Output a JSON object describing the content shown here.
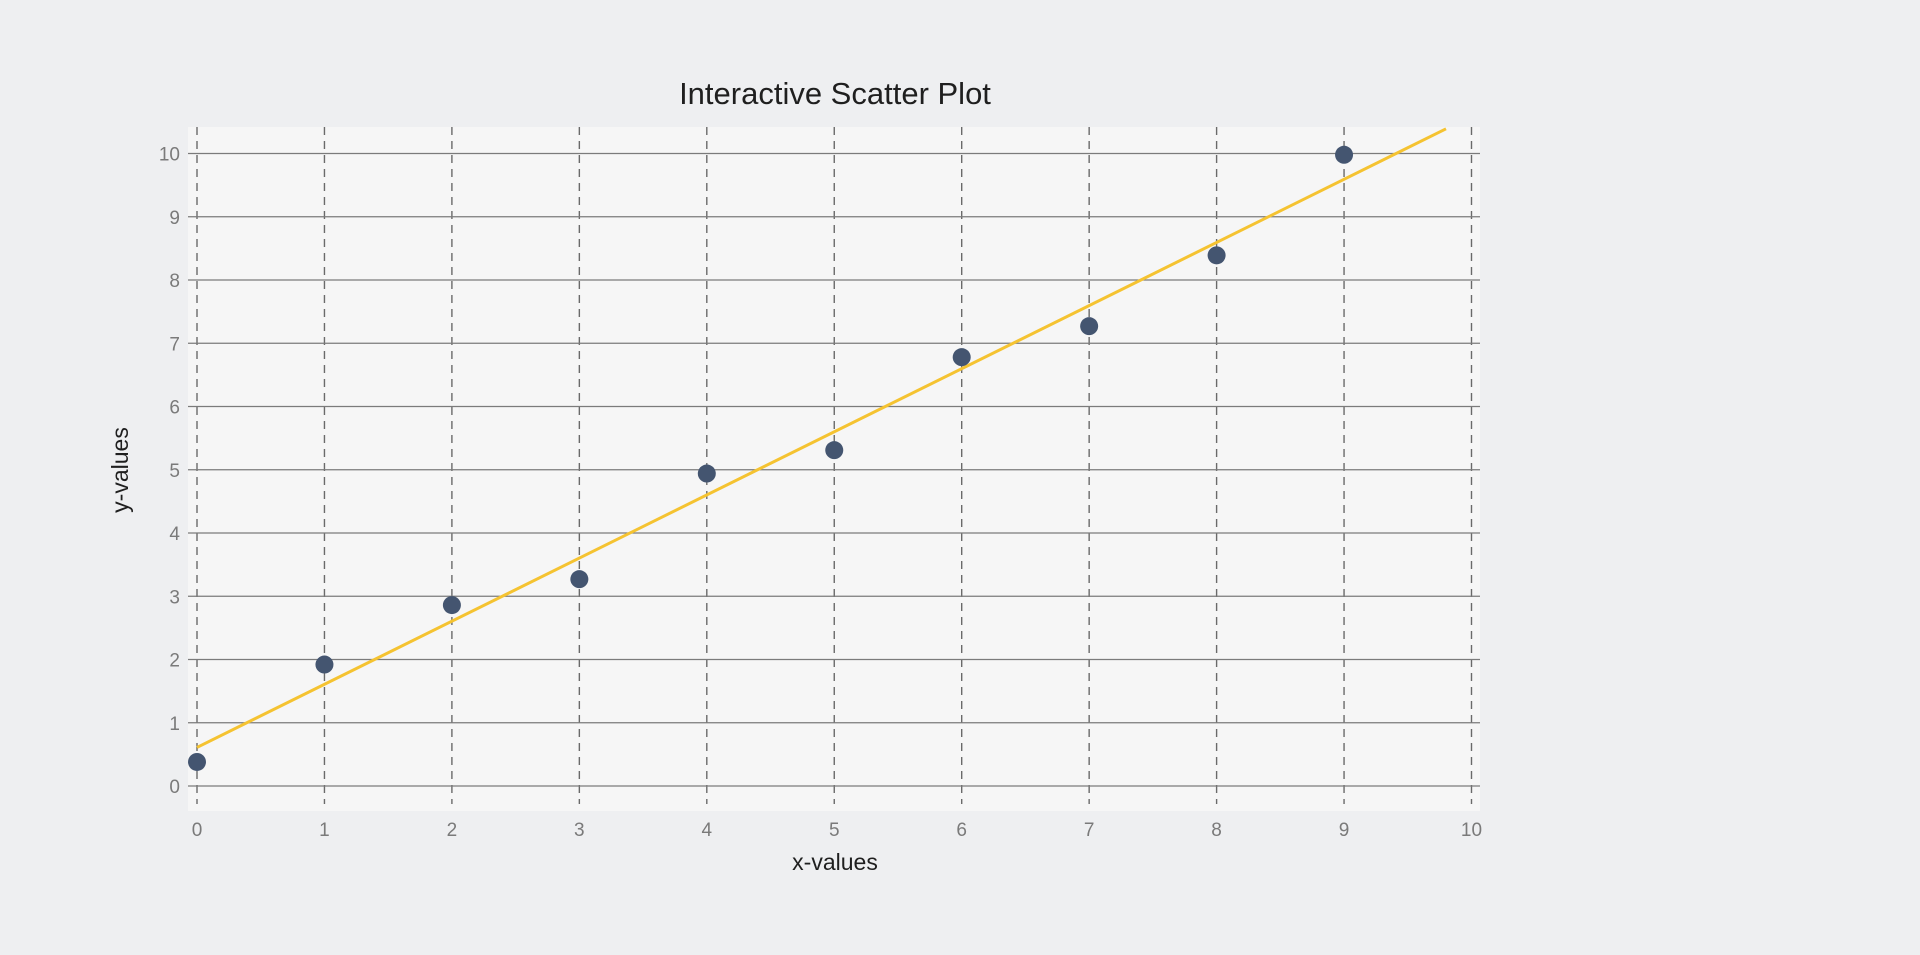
{
  "colors": {
    "page_background": "#eeeff1",
    "plot_background": "#f6f6f6",
    "grid_horizontal": "#7b7b7b",
    "grid_vertical": "#6a6a6a",
    "marker": "#445570",
    "trend_line": "#f5c331",
    "tick_text": "#7a7a7a",
    "title_text": "#1f1f1f"
  },
  "chart_data": {
    "type": "scatter",
    "title": "Interactive Scatter Plot",
    "xlabel": "x-values",
    "ylabel": "y-values",
    "xlim": [
      0,
      10
    ],
    "ylim": [
      0,
      10
    ],
    "x_ticks": [
      "0",
      "1",
      "2",
      "3",
      "4",
      "5",
      "6",
      "7",
      "8",
      "9",
      "10"
    ],
    "y_ticks": [
      "0",
      "1",
      "2",
      "3",
      "4",
      "5",
      "6",
      "7",
      "8",
      "9",
      "10"
    ],
    "grid": {
      "horizontal": "solid",
      "vertical": "dashed"
    },
    "legend": "none",
    "series": [
      {
        "type": "scatter",
        "x": [
          0,
          1,
          2,
          3,
          4,
          5,
          6,
          7,
          8,
          9
        ],
        "y": [
          0.38,
          1.92,
          2.86,
          3.27,
          4.94,
          5.31,
          6.78,
          7.27,
          8.39,
          9.98
        ]
      },
      {
        "type": "line",
        "x": [
          0,
          9.8
        ],
        "y": [
          0.61,
          10.39
        ]
      }
    ]
  }
}
